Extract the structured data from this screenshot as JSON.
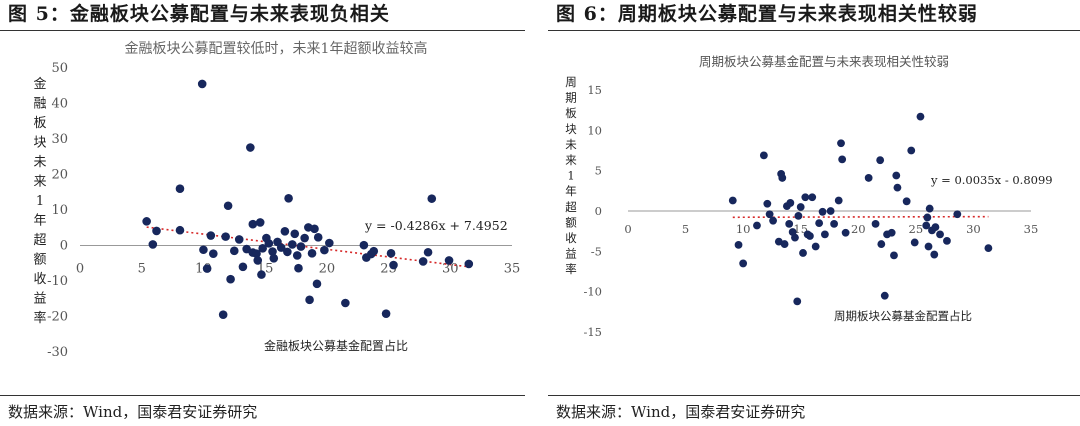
{
  "figures": [
    {
      "title": "图 5：金融板块公募配置与未来表现负相关",
      "source": "数据来源：Wind，国泰君安证券研究",
      "chart_data": {
        "type": "scatter",
        "title": "金融板块公募配置较低时，未来1年超额收益较高",
        "xlabel": "金融板块公募基金配置占比",
        "ylabel": "金融板块未来1年超额收益率",
        "xlim": [
          0,
          35
        ],
        "ylim": [
          -30,
          50
        ],
        "xticks": [
          0,
          5,
          10,
          15,
          20,
          25,
          30,
          35
        ],
        "yticks": [
          -30,
          -20,
          -10,
          0,
          10,
          20,
          30,
          40,
          50
        ],
        "marker_color": "#17275c",
        "trend_color": "#d62828",
        "trendline": {
          "slope": -0.4286,
          "intercept": 7.4952,
          "label": "y = -0.4286x + 7.4952"
        },
        "points": [
          [
            5.4,
            6.8
          ],
          [
            5.9,
            0.3
          ],
          [
            6.2,
            4.1
          ],
          [
            8.1,
            16.0
          ],
          [
            8.1,
            4.3
          ],
          [
            9.9,
            45.5
          ],
          [
            10.0,
            -1.2
          ],
          [
            10.3,
            -6.5
          ],
          [
            10.6,
            2.8
          ],
          [
            10.8,
            -2.3
          ],
          [
            11.6,
            -19.5
          ],
          [
            11.8,
            2.5
          ],
          [
            12.0,
            11.2
          ],
          [
            12.2,
            -9.5
          ],
          [
            12.5,
            -1.5
          ],
          [
            12.9,
            1.7
          ],
          [
            13.2,
            -6.0
          ],
          [
            13.5,
            -1.0
          ],
          [
            13.8,
            27.6
          ],
          [
            14.0,
            -2.0
          ],
          [
            14.0,
            6.0
          ],
          [
            14.3,
            -2.3
          ],
          [
            14.4,
            -4.2
          ],
          [
            14.6,
            6.5
          ],
          [
            14.7,
            -8.2
          ],
          [
            14.8,
            -0.8
          ],
          [
            15.1,
            2.1
          ],
          [
            15.3,
            0.6
          ],
          [
            15.6,
            -1.7
          ],
          [
            15.7,
            -3.6
          ],
          [
            16.0,
            1.0
          ],
          [
            16.3,
            -0.6
          ],
          [
            16.6,
            4.0
          ],
          [
            16.8,
            -1.8
          ],
          [
            16.9,
            13.3
          ],
          [
            17.2,
            0.3
          ],
          [
            17.4,
            3.3
          ],
          [
            17.6,
            -2.8
          ],
          [
            17.7,
            -6.4
          ],
          [
            17.9,
            -0.3
          ],
          [
            18.2,
            2.1
          ],
          [
            18.5,
            5.1
          ],
          [
            18.6,
            -15.3
          ],
          [
            18.8,
            -2.2
          ],
          [
            19.0,
            4.7
          ],
          [
            19.2,
            -10.8
          ],
          [
            19.3,
            2.3
          ],
          [
            19.8,
            -1.3
          ],
          [
            20.2,
            0.7
          ],
          [
            21.5,
            -16.2
          ],
          [
            23.0,
            0.1
          ],
          [
            23.6,
            -2.4
          ],
          [
            23.8,
            -1.6
          ],
          [
            24.8,
            -19.2
          ],
          [
            25.2,
            -2.2
          ],
          [
            25.4,
            -5.5
          ],
          [
            27.8,
            -4.5
          ],
          [
            28.5,
            13.2
          ],
          [
            29.9,
            -4.2
          ],
          [
            31.5,
            -5.2
          ],
          [
            23.2,
            -3.4
          ],
          [
            28.2,
            -1.9
          ]
        ]
      }
    },
    {
      "title": "图 6：周期板块公募配置与未来表现相关性较弱",
      "source": "数据来源：Wind，国泰君安证券研究",
      "chart_data": {
        "type": "scatter",
        "title": "周期板块公募基金配置与未来表现相关性较弱",
        "xlabel": "周期板块公募基金配置占比",
        "ylabel": "周期板块未来1年超额收益率",
        "xlim": [
          0,
          35
        ],
        "ylim": [
          -15,
          15
        ],
        "xticks": [
          0,
          5,
          10,
          15,
          20,
          25,
          30,
          35
        ],
        "yticks": [
          -15,
          -10,
          -5,
          0,
          5,
          10,
          15
        ],
        "marker_color": "#17275c",
        "trend_color": "#d62828",
        "trendline": {
          "slope": 0.0035,
          "intercept": -0.8099,
          "label": "y = 0.0035x - 0.8099"
        },
        "points": [
          [
            9.1,
            1.3
          ],
          [
            9.6,
            -4.2
          ],
          [
            10.0,
            -6.5
          ],
          [
            11.2,
            -1.8
          ],
          [
            11.8,
            6.9
          ],
          [
            12.1,
            0.9
          ],
          [
            12.3,
            -0.4
          ],
          [
            12.6,
            -1.2
          ],
          [
            13.1,
            -3.8
          ],
          [
            13.3,
            4.6
          ],
          [
            13.4,
            4.1
          ],
          [
            13.6,
            -4.1
          ],
          [
            13.8,
            0.6
          ],
          [
            14.0,
            -1.6
          ],
          [
            14.1,
            1.0
          ],
          [
            14.3,
            -2.6
          ],
          [
            14.5,
            -3.3
          ],
          [
            14.7,
            -11.2
          ],
          [
            14.8,
            -0.6
          ],
          [
            15.0,
            0.5
          ],
          [
            15.2,
            -5.2
          ],
          [
            15.4,
            1.7
          ],
          [
            15.6,
            -2.9
          ],
          [
            15.8,
            -3.1
          ],
          [
            16.0,
            1.7
          ],
          [
            16.3,
            -4.4
          ],
          [
            16.6,
            -1.5
          ],
          [
            16.9,
            -0.1
          ],
          [
            17.1,
            -2.9
          ],
          [
            17.6,
            0.0
          ],
          [
            17.9,
            -1.6
          ],
          [
            18.3,
            1.3
          ],
          [
            18.5,
            8.4
          ],
          [
            18.6,
            6.4
          ],
          [
            18.9,
            -2.7
          ],
          [
            20.9,
            4.1
          ],
          [
            21.5,
            -1.6
          ],
          [
            21.9,
            6.3
          ],
          [
            22.0,
            -4.1
          ],
          [
            22.3,
            -10.5
          ],
          [
            22.5,
            -2.9
          ],
          [
            22.9,
            -2.7
          ],
          [
            23.1,
            -5.5
          ],
          [
            23.3,
            4.4
          ],
          [
            23.4,
            2.9
          ],
          [
            24.2,
            1.2
          ],
          [
            24.6,
            7.5
          ],
          [
            24.9,
            -3.9
          ],
          [
            25.4,
            11.7
          ],
          [
            25.9,
            -1.8
          ],
          [
            26.1,
            -4.4
          ],
          [
            26.2,
            0.3
          ],
          [
            26.4,
            -2.4
          ],
          [
            26.6,
            -5.4
          ],
          [
            26.7,
            -2.0
          ],
          [
            27.1,
            -2.9
          ],
          [
            27.7,
            -3.7
          ],
          [
            28.6,
            -0.4
          ],
          [
            31.3,
            -4.6
          ],
          [
            26.0,
            -0.8
          ]
        ]
      }
    }
  ]
}
